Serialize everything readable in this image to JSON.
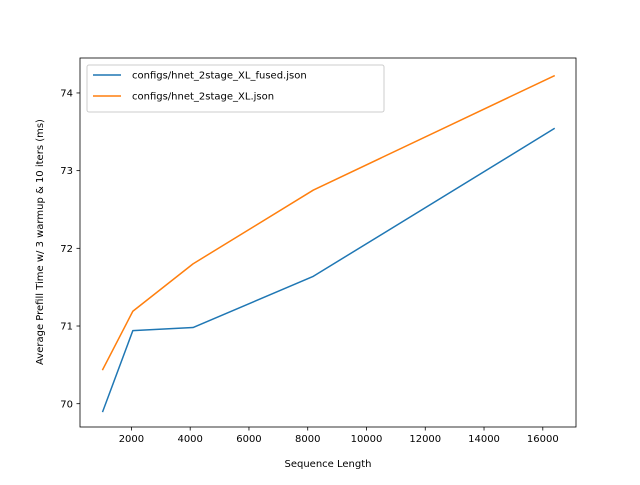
{
  "chart_data": {
    "type": "line",
    "title": "",
    "xlabel": "Sequence Length",
    "ylabel": "Average Prefill Time w/ 3 warmup & 10 iters (ms)",
    "xlim": [
      250,
      17130
    ],
    "ylim": [
      69.7,
      74.45
    ],
    "xticks": [
      2000,
      4000,
      6000,
      8000,
      10000,
      12000,
      14000,
      16000
    ],
    "yticks": [
      70,
      71,
      72,
      73,
      74
    ],
    "grid": false,
    "legend_position": "upper left",
    "series": [
      {
        "name": "configs/hnet_2stage_XL_fused.json",
        "color": "#1f77b4",
        "x": [
          1024,
          2048,
          4096,
          8192,
          16384
        ],
        "y": [
          69.9,
          70.94,
          70.98,
          71.64,
          73.54
        ]
      },
      {
        "name": "configs/hnet_2stage_XL.json",
        "color": "#ff7f0e",
        "x": [
          1024,
          2048,
          4096,
          8192,
          16384
        ],
        "y": [
          70.44,
          71.19,
          71.8,
          72.75,
          74.22
        ]
      }
    ]
  }
}
